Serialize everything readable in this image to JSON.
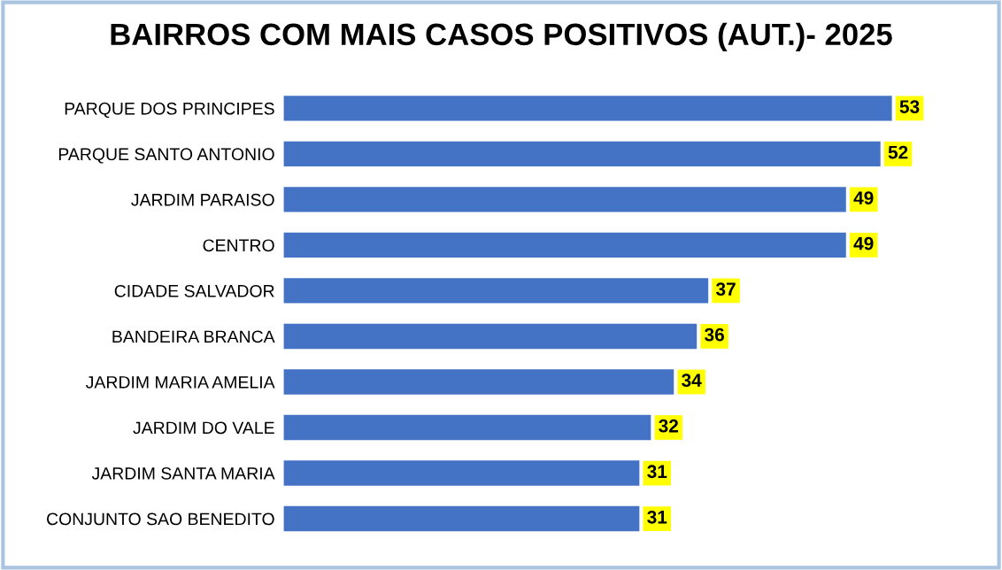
{
  "chart_data": {
    "type": "bar",
    "orientation": "horizontal",
    "title": "BAIRROS COM MAIS CASOS POSITIVOS (AUT.)- 2025",
    "categories": [
      "PARQUE DOS PRINCIPES",
      "PARQUE SANTO ANTONIO",
      "JARDIM PARAISO",
      "CENTRO",
      "CIDADE SALVADOR",
      "BANDEIRA BRANCA",
      "JARDIM MARIA AMELIA",
      "JARDIM DO VALE",
      "JARDIM SANTA MARIA",
      "CONJUNTO SAO BENEDITO"
    ],
    "values": [
      53,
      52,
      49,
      49,
      37,
      36,
      34,
      32,
      31,
      31
    ],
    "color": "#4472c4",
    "data_labels": true,
    "grid": false,
    "legend": false
  }
}
